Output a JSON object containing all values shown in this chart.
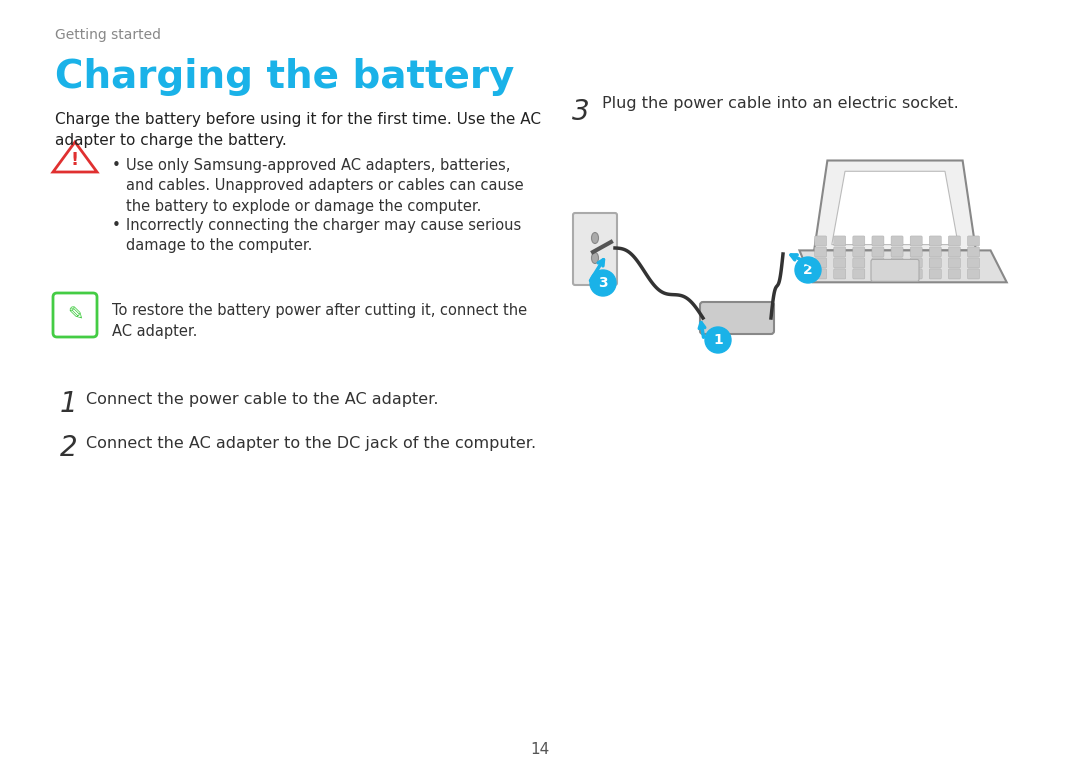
{
  "bg_color": "#ffffff",
  "page_number": "14",
  "section_label": "Getting started",
  "section_label_color": "#888888",
  "title": "Charging the battery",
  "title_color": "#1ab2e8",
  "title_fontsize": 28,
  "intro_text": "Charge the battery before using it for the first time. Use the AC\nadapter to charge the battery.",
  "warning_bullets": [
    "Use only Samsung-approved AC adapters, batteries,\nand cables. Unapproved adapters or cables can cause\nthe battery to explode or damage the computer.",
    "Incorrectly connecting the charger may cause serious\ndamage to the computer."
  ],
  "note_text": "To restore the battery power after cutting it, connect the\nAC adapter.",
  "steps": [
    {
      "num": "1",
      "text": "Connect the power cable to the AC adapter."
    },
    {
      "num": "2",
      "text": "Connect the AC adapter to the DC jack of the computer."
    },
    {
      "num": "3",
      "text": "Plug the power cable into an electric socket."
    }
  ],
  "step_num_color": "#333333",
  "step_text_color": "#333333",
  "diagram_circle_color": "#1ab2e8",
  "diagram_circle_text_color": "#ffffff",
  "warning_icon_color": "#e03030",
  "note_icon_color": "#44cc44"
}
